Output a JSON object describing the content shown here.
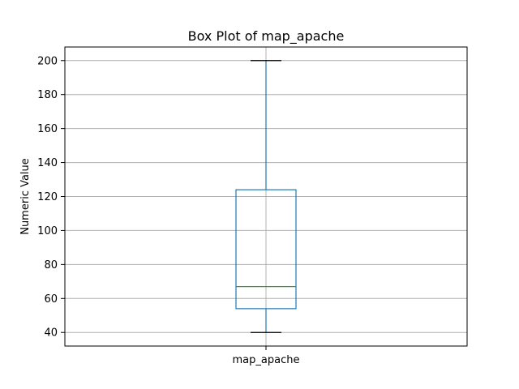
{
  "chart_data": {
    "type": "box",
    "title": "Box Plot of map_apache",
    "xlabel": "",
    "ylabel": "Numeric Value",
    "categories": [
      "map_apache"
    ],
    "boxes": [
      {
        "name": "map_apache",
        "whisker_low": 40,
        "q1": 54,
        "median": 67,
        "q3": 124,
        "whisker_high": 200
      }
    ],
    "yticks": [
      40,
      60,
      80,
      100,
      120,
      140,
      160,
      180,
      200
    ],
    "ylim": [
      32,
      208
    ],
    "grid": true,
    "legend": "none"
  },
  "colors": {
    "box": "#1f77b4",
    "median": "#2ca02c",
    "caps": "#000000",
    "grid": "#b0b0b0"
  }
}
